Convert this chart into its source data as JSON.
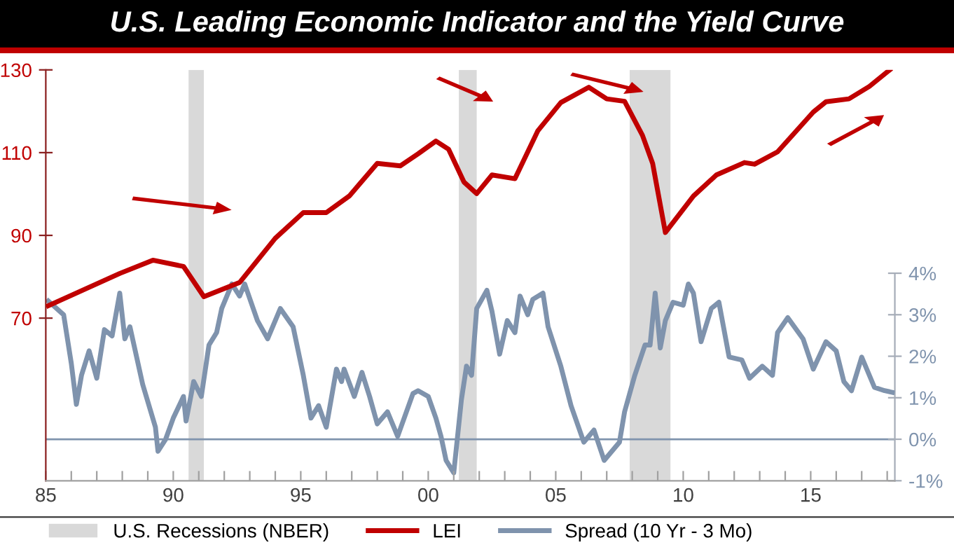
{
  "chart_data": {
    "type": "line",
    "title": "U.S. Leading Economic Indicator and the Yield Curve",
    "series": [
      {
        "name": "LEI",
        "color": "#c00000",
        "axis": "y",
        "x": [
          1985.1,
          1987.9,
          1989.2,
          1990.4,
          1991.2,
          1992.6,
          1994.0,
          1995.1,
          1996.0,
          1996.9,
          1998.0,
          1998.9,
          1999.6,
          2000.3,
          2000.8,
          2001.4,
          2001.9,
          2002.5,
          2003.4,
          2004.3,
          2005.2,
          2006.3,
          2007.0,
          2007.7,
          2008.4,
          2008.8,
          2009.3,
          2010.4,
          2011.3,
          2012.4,
          2012.8,
          2013.7,
          2015.1,
          2015.6,
          2016.5,
          2017.3,
          2018.1
        ],
        "values": [
          73,
          80.8,
          84,
          82.5,
          75.2,
          78.6,
          89.3,
          95.5,
          95.5,
          99.5,
          107.4,
          106.8,
          109.7,
          112.8,
          110.8,
          102.9,
          100.1,
          104.6,
          103.7,
          115.3,
          122.1,
          125.8,
          123,
          122.4,
          114.2,
          107.4,
          90.7,
          99.5,
          104.6,
          107.6,
          107.2,
          110.2,
          119.8,
          122.3,
          123,
          126,
          130
        ]
      },
      {
        "name": "Spread (10 Yr - 3 Mo)",
        "color": "#7f93ad",
        "axis": "y2",
        "x": [
          1985.1,
          1985.7,
          1986.0,
          1986.2,
          1986.4,
          1986.7,
          1987.0,
          1987.3,
          1987.6,
          1987.9,
          1988.1,
          1988.3,
          1988.8,
          1989.3,
          1989.4,
          1989.7,
          1990.0,
          1990.4,
          1990.5,
          1990.8,
          1991.1,
          1991.4,
          1991.7,
          1991.9,
          1992.3,
          1992.6,
          1992.8,
          1993.3,
          1993.7,
          1994.2,
          1994.7,
          1995.1,
          1995.4,
          1995.7,
          1996.0,
          1996.4,
          1996.6,
          1996.7,
          1997.1,
          1997.4,
          1997.7,
          1998.0,
          1998.4,
          1998.8,
          1999.4,
          1999.6,
          2000.0,
          2000.3,
          2000.5,
          2000.7,
          2001.0,
          2001.3,
          2001.5,
          2001.7,
          2001.9,
          2002.3,
          2002.5,
          2002.8,
          2003.1,
          2003.4,
          2003.6,
          2003.9,
          2004.1,
          2004.5,
          2004.7,
          2005.2,
          2005.6,
          2006.1,
          2006.5,
          2006.9,
          2007.2,
          2007.5,
          2007.7,
          2008.1,
          2008.5,
          2008.7,
          2008.9,
          2009.1,
          2009.3,
          2009.6,
          2010.0,
          2010.2,
          2010.4,
          2010.7,
          2011.1,
          2011.4,
          2011.8,
          2012.3,
          2012.6,
          2013.1,
          2013.5,
          2013.7,
          2014.1,
          2014.7,
          2015.1,
          2015.6,
          2016.0,
          2016.3,
          2016.6,
          2017.0,
          2017.5,
          2017.9,
          2018.2
        ],
        "values": [
          3.33,
          3.0,
          1.83,
          0.84,
          1.54,
          2.13,
          1.47,
          2.64,
          2.49,
          3.52,
          2.42,
          2.71,
          1.32,
          0.29,
          -0.29,
          0,
          0.51,
          1.03,
          0.44,
          1.39,
          1.03,
          2.27,
          2.57,
          3.15,
          3.74,
          3.45,
          3.74,
          2.86,
          2.42,
          3.15,
          2.71,
          1.54,
          0.51,
          0.81,
          0.29,
          1.69,
          1.39,
          1.69,
          1.03,
          1.61,
          1.03,
          0.37,
          0.66,
          0.07,
          1.1,
          1.17,
          1.03,
          0.51,
          0.07,
          -0.51,
          -0.81,
          0.95,
          1.76,
          1.54,
          3.15,
          3.59,
          3.08,
          2.05,
          2.86,
          2.57,
          3.45,
          3.0,
          3.37,
          3.52,
          2.71,
          1.76,
          0.81,
          -0.07,
          0.22,
          -0.51,
          -0.29,
          -0.07,
          0.66,
          1.54,
          2.27,
          2.27,
          3.52,
          2.2,
          2.86,
          3.3,
          3.23,
          3.74,
          3.52,
          2.35,
          3.15,
          3.3,
          1.98,
          1.91,
          1.47,
          1.76,
          1.54,
          2.57,
          2.93,
          2.42,
          1.69,
          2.35,
          2.13,
          1.39,
          1.17,
          1.98,
          1.25,
          1.17,
          1.13
        ]
      }
    ],
    "xlim": [
      1985,
      2018.3
    ],
    "xticks": [
      {
        "value": 1985,
        "label": "85"
      },
      {
        "value": 1986,
        "label": null
      },
      {
        "value": 1987,
        "label": null
      },
      {
        "value": 1988,
        "label": null
      },
      {
        "value": 1989,
        "label": null
      },
      {
        "value": 1990,
        "label": "90"
      },
      {
        "value": 1991,
        "label": null
      },
      {
        "value": 1992,
        "label": null
      },
      {
        "value": 1993,
        "label": null
      },
      {
        "value": 1994,
        "label": null
      },
      {
        "value": 1995,
        "label": "95"
      },
      {
        "value": 1996,
        "label": null
      },
      {
        "value": 1997,
        "label": null
      },
      {
        "value": 1998,
        "label": null
      },
      {
        "value": 1999,
        "label": null
      },
      {
        "value": 2000,
        "label": "00"
      },
      {
        "value": 2001,
        "label": null
      },
      {
        "value": 2002,
        "label": null
      },
      {
        "value": 2003,
        "label": null
      },
      {
        "value": 2004,
        "label": null
      },
      {
        "value": 2005,
        "label": "05"
      },
      {
        "value": 2006,
        "label": null
      },
      {
        "value": 2007,
        "label": null
      },
      {
        "value": 2008,
        "label": null
      },
      {
        "value": 2009,
        "label": null
      },
      {
        "value": 2010,
        "label": "10"
      },
      {
        "value": 2011,
        "label": null
      },
      {
        "value": 2012,
        "label": null
      },
      {
        "value": 2013,
        "label": null
      },
      {
        "value": 2014,
        "label": null
      },
      {
        "value": 2015,
        "label": "15"
      },
      {
        "value": 2016,
        "label": null
      },
      {
        "value": 2017,
        "label": null
      },
      {
        "value": 2018,
        "label": null
      }
    ],
    "ylim": [
      30.7,
      130
    ],
    "yticks": [
      70,
      90,
      110,
      130
    ],
    "y2lim": [
      -1,
      8.9
    ],
    "y2ticks": [
      {
        "value": -1,
        "label": "-1%"
      },
      {
        "value": 0,
        "label": "0%"
      },
      {
        "value": 1,
        "label": "1%"
      },
      {
        "value": 2,
        "label": "2%"
      },
      {
        "value": 3,
        "label": "3%"
      },
      {
        "value": 4,
        "label": "4%"
      }
    ],
    "bands": [
      {
        "axis": "x",
        "from": 1990.6,
        "to": 1991.2,
        "label": "U.S. Recessions (NBER)",
        "color": "#d9d9d9"
      },
      {
        "axis": "x",
        "from": 2001.2,
        "to": 2001.9,
        "color": "#d9d9d9"
      },
      {
        "axis": "x",
        "from": 2007.9,
        "to": 2009.5,
        "color": "#d9d9d9"
      }
    ],
    "ref_lines": [
      {
        "axis": "y2",
        "value": 0,
        "color": "#7f93ad"
      }
    ],
    "grid": false,
    "legend": "bottom",
    "line_style": "solid",
    "marker": "none"
  }
}
